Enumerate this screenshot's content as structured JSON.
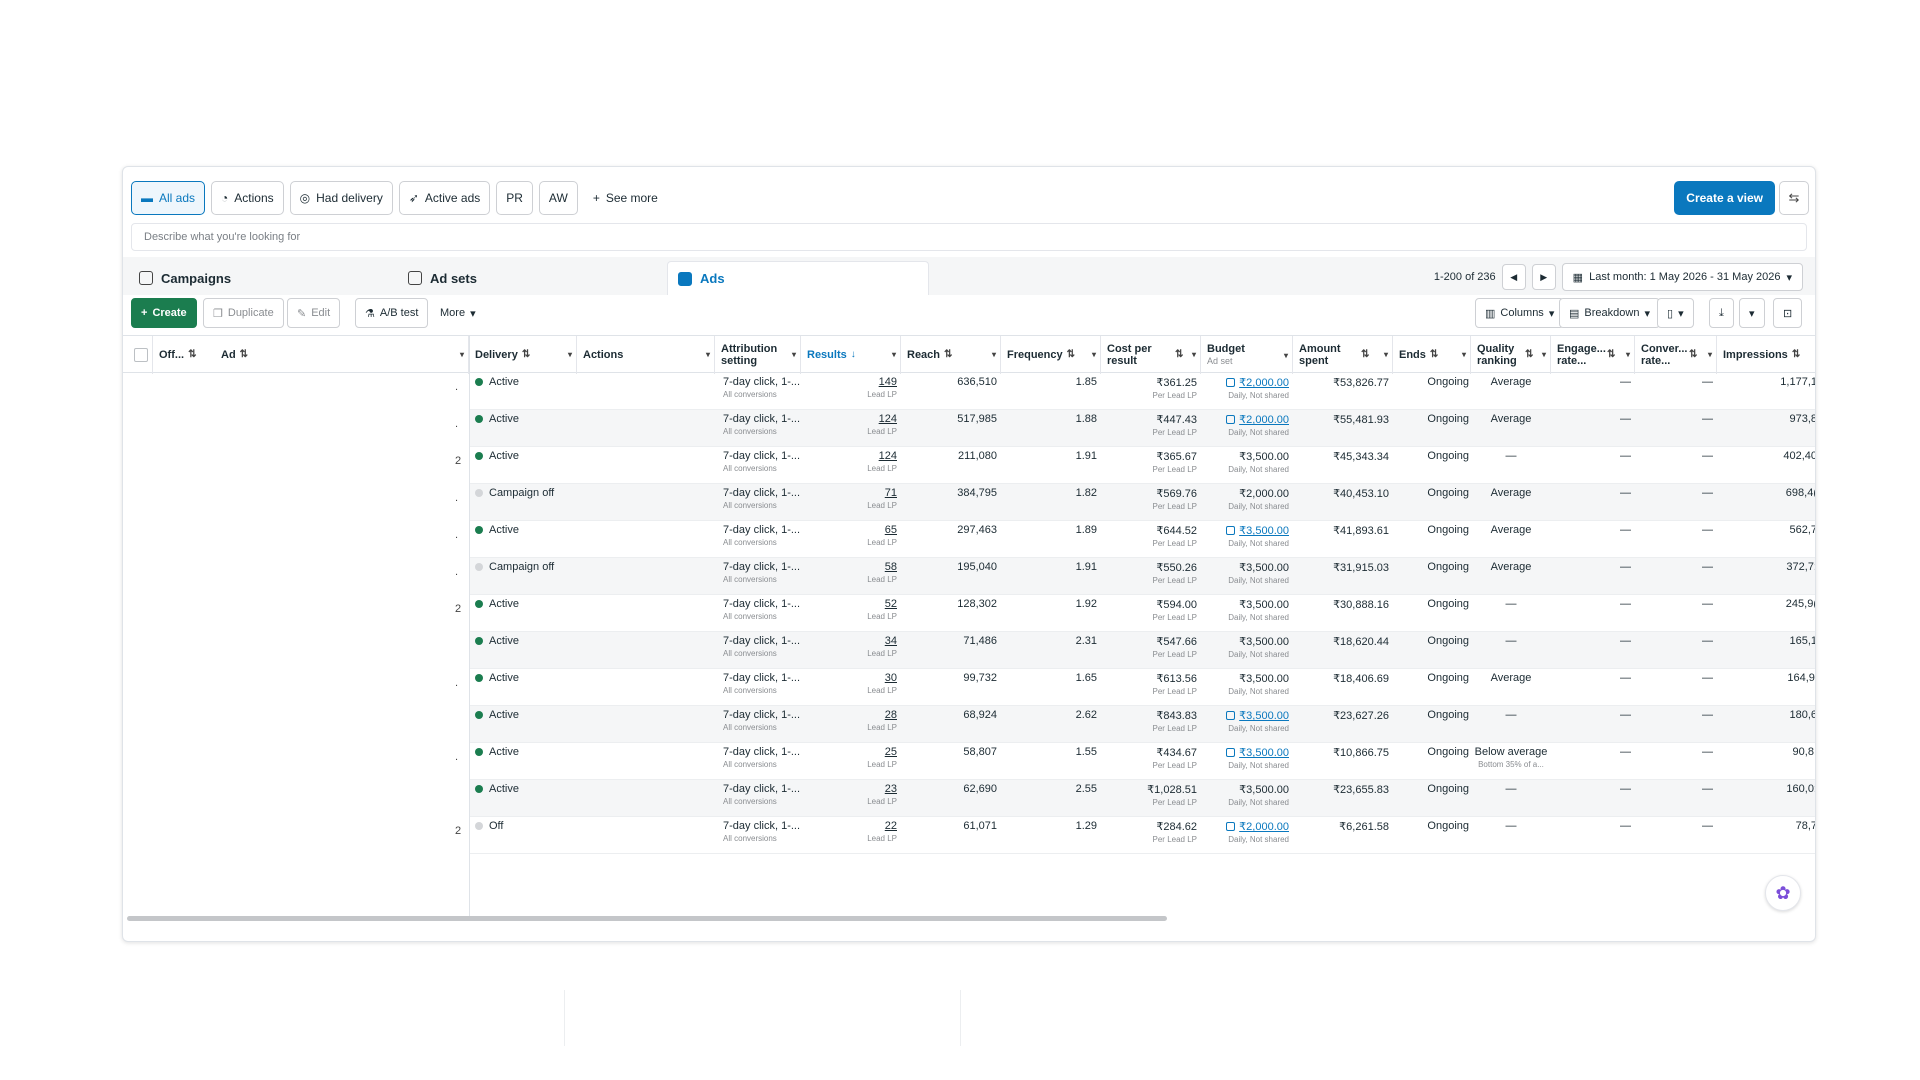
{
  "tabs": {
    "items": [
      {
        "label": "All ads",
        "icon": "folder-icon"
      },
      {
        "label": "Actions",
        "icon": "actions-icon"
      },
      {
        "label": "Had delivery",
        "icon": "delivery-icon"
      },
      {
        "label": "Active ads",
        "icon": "send-icon"
      },
      {
        "label": "PR"
      },
      {
        "label": "AW"
      },
      {
        "label": "See more",
        "icon": "plus-icon"
      }
    ],
    "create_view": "Create a view"
  },
  "search": {
    "placeholder": "Describe what you're looking for"
  },
  "levels": {
    "campaigns": "Campaigns",
    "adsets": "Ad sets",
    "ads": "Ads"
  },
  "pager": {
    "range": "1-200 of 236",
    "date": "Last month: 1 May 2026 - 31 May 2026"
  },
  "toolbar": {
    "create": "Create",
    "duplicate": "Duplicate",
    "edit": "Edit",
    "abtest": "A/B test",
    "more": "More",
    "columns": "Columns",
    "breakdown": "Breakdown"
  },
  "headers": {
    "off": "Off...",
    "ad": "Ad",
    "delivery": "Delivery",
    "actions": "Actions",
    "attribution": "Attribution setting",
    "results": "Results",
    "reach": "Reach",
    "frequency": "Frequency",
    "cpr": "Cost per result",
    "budget": "Budget",
    "budget_sub": "Ad set",
    "amount": "Amount spent",
    "ends": "Ends",
    "quality": "Quality ranking",
    "engage": "Engage... rate...",
    "conver": "Conver... rate...",
    "impressions": "Impressions"
  },
  "rows": [
    {
      "mark": ".",
      "status": "Active",
      "on": true,
      "attr": "7-day click, 1-...",
      "attr_sub": "All conversions",
      "results": "149",
      "results_sub": "Lead LP",
      "reach": "636,510",
      "freq": "1.85",
      "cpr": "₹361.25",
      "cpr_sub": "Per Lead LP",
      "budget": "₹2,000.00",
      "budget_sub": "Daily, Not shared",
      "budget_link": true,
      "amount": "₹53,826.77",
      "ends": "Ongoing",
      "quality": "Average",
      "quality_sub": "",
      "engage": "—",
      "conver": "—",
      "impr": "1,177,1"
    },
    {
      "mark": ".",
      "status": "Active",
      "on": true,
      "attr": "7-day click, 1-...",
      "attr_sub": "All conversions",
      "results": "124",
      "results_sub": "Lead LP",
      "reach": "517,985",
      "freq": "1.88",
      "cpr": "₹447.43",
      "cpr_sub": "Per Lead LP",
      "budget": "₹2,000.00",
      "budget_sub": "Daily, Not shared",
      "budget_link": true,
      "amount": "₹55,481.93",
      "ends": "Ongoing",
      "quality": "Average",
      "quality_sub": "",
      "engage": "—",
      "conver": "—",
      "impr": "973,8"
    },
    {
      "mark": "2",
      "status": "Active",
      "on": true,
      "attr": "7-day click, 1-...",
      "attr_sub": "All conversions",
      "results": "124",
      "results_sub": "Lead LP",
      "reach": "211,080",
      "freq": "1.91",
      "cpr": "₹365.67",
      "cpr_sub": "Per Lead LP",
      "budget": "₹3,500.00",
      "budget_sub": "Daily, Not shared",
      "budget_link": false,
      "amount": "₹45,343.34",
      "ends": "Ongoing",
      "quality": "—",
      "quality_sub": "",
      "engage": "—",
      "conver": "—",
      "impr": "402,40"
    },
    {
      "mark": ".",
      "status": "Campaign off",
      "on": false,
      "attr": "7-day click, 1-...",
      "attr_sub": "All conversions",
      "results": "71",
      "results_sub": "Lead LP",
      "reach": "384,795",
      "freq": "1.82",
      "cpr": "₹569.76",
      "cpr_sub": "Per Lead LP",
      "budget": "₹2,000.00",
      "budget_sub": "Daily, Not shared",
      "budget_link": false,
      "amount": "₹40,453.10",
      "ends": "Ongoing",
      "quality": "Average",
      "quality_sub": "",
      "engage": "—",
      "conver": "—",
      "impr": "698,4("
    },
    {
      "mark": ".",
      "status": "Active",
      "on": true,
      "attr": "7-day click, 1-...",
      "attr_sub": "All conversions",
      "results": "65",
      "results_sub": "Lead LP",
      "reach": "297,463",
      "freq": "1.89",
      "cpr": "₹644.52",
      "cpr_sub": "Per Lead LP",
      "budget": "₹3,500.00",
      "budget_sub": "Daily, Not shared",
      "budget_link": true,
      "amount": "₹41,893.61",
      "ends": "Ongoing",
      "quality": "Average",
      "quality_sub": "",
      "engage": "—",
      "conver": "—",
      "impr": "562,7"
    },
    {
      "mark": ".",
      "status": "Campaign off",
      "on": false,
      "attr": "7-day click, 1-...",
      "attr_sub": "All conversions",
      "results": "58",
      "results_sub": "Lead LP",
      "reach": "195,040",
      "freq": "1.91",
      "cpr": "₹550.26",
      "cpr_sub": "Per Lead LP",
      "budget": "₹3,500.00",
      "budget_sub": "Daily, Not shared",
      "budget_link": false,
      "amount": "₹31,915.03",
      "ends": "Ongoing",
      "quality": "Average",
      "quality_sub": "",
      "engage": "—",
      "conver": "—",
      "impr": "372,7:"
    },
    {
      "mark": "2",
      "status": "Active",
      "on": true,
      "attr": "7-day click, 1-...",
      "attr_sub": "All conversions",
      "results": "52",
      "results_sub": "Lead LP",
      "reach": "128,302",
      "freq": "1.92",
      "cpr": "₹594.00",
      "cpr_sub": "Per Lead LP",
      "budget": "₹3,500.00",
      "budget_sub": "Daily, Not shared",
      "budget_link": false,
      "amount": "₹30,888.16",
      "ends": "Ongoing",
      "quality": "—",
      "quality_sub": "",
      "engage": "—",
      "conver": "—",
      "impr": "245,9("
    },
    {
      "mark": "",
      "status": "Active",
      "on": true,
      "attr": "7-day click, 1-...",
      "attr_sub": "All conversions",
      "results": "34",
      "results_sub": "Lead LP",
      "reach": "71,486",
      "freq": "2.31",
      "cpr": "₹547.66",
      "cpr_sub": "Per Lead LP",
      "budget": "₹3,500.00",
      "budget_sub": "Daily, Not shared",
      "budget_link": false,
      "amount": "₹18,620.44",
      "ends": "Ongoing",
      "quality": "—",
      "quality_sub": "",
      "engage": "—",
      "conver": "—",
      "impr": "165,1"
    },
    {
      "mark": ".",
      "status": "Active",
      "on": true,
      "attr": "7-day click, 1-...",
      "attr_sub": "All conversions",
      "results": "30",
      "results_sub": "Lead LP",
      "reach": "99,732",
      "freq": "1.65",
      "cpr": "₹613.56",
      "cpr_sub": "Per Lead LP",
      "budget": "₹3,500.00",
      "budget_sub": "Daily, Not shared",
      "budget_link": false,
      "amount": "₹18,406.69",
      "ends": "Ongoing",
      "quality": "Average",
      "quality_sub": "",
      "engage": "—",
      "conver": "—",
      "impr": "164,9'"
    },
    {
      "mark": "",
      "status": "Active",
      "on": true,
      "attr": "7-day click, 1-...",
      "attr_sub": "All conversions",
      "results": "28",
      "results_sub": "Lead LP",
      "reach": "68,924",
      "freq": "2.62",
      "cpr": "₹843.83",
      "cpr_sub": "Per Lead LP",
      "budget": "₹3,500.00",
      "budget_sub": "Daily, Not shared",
      "budget_link": true,
      "amount": "₹23,627.26",
      "ends": "Ongoing",
      "quality": "—",
      "quality_sub": "",
      "engage": "—",
      "conver": "—",
      "impr": "180,6"
    },
    {
      "mark": ".",
      "status": "Active",
      "on": true,
      "attr": "7-day click, 1-...",
      "attr_sub": "All conversions",
      "results": "25",
      "results_sub": "Lead LP",
      "reach": "58,807",
      "freq": "1.55",
      "cpr": "₹434.67",
      "cpr_sub": "Per Lead LP",
      "budget": "₹3,500.00",
      "budget_sub": "Daily, Not shared",
      "budget_link": true,
      "amount": "₹10,866.75",
      "ends": "Ongoing",
      "quality": "Below average",
      "quality_sub": "Bottom 35% of a...",
      "engage": "—",
      "conver": "—",
      "impr": "90,8!"
    },
    {
      "mark": "",
      "status": "Active",
      "on": true,
      "attr": "7-day click, 1-...",
      "attr_sub": "All conversions",
      "results": "23",
      "results_sub": "Lead LP",
      "reach": "62,690",
      "freq": "2.55",
      "cpr": "₹1,028.51",
      "cpr_sub": "Per Lead LP",
      "budget": "₹3,500.00",
      "budget_sub": "Daily, Not shared",
      "budget_link": false,
      "amount": "₹23,655.83",
      "ends": "Ongoing",
      "quality": "—",
      "quality_sub": "",
      "engage": "—",
      "conver": "—",
      "impr": "160,0:"
    },
    {
      "mark": "2",
      "status": "Off",
      "on": false,
      "attr": "7-day click, 1-...",
      "attr_sub": "All conversions",
      "results": "22",
      "results_sub": "Lead LP",
      "reach": "61,071",
      "freq": "1.29",
      "cpr": "₹284.62",
      "cpr_sub": "Per Lead LP",
      "budget": "₹2,000.00",
      "budget_sub": "Daily, Not shared",
      "budget_link": true,
      "amount": "₹6,261.58",
      "ends": "Ongoing",
      "quality": "—",
      "quality_sub": "",
      "engage": "—",
      "conver": "—",
      "impr": "78,7"
    }
  ],
  "colors": {
    "accent": "#0a78be",
    "create_green": "#1b7d4f",
    "active_dot": "#1b7d4f",
    "off_dot": "#d4d6d9"
  }
}
